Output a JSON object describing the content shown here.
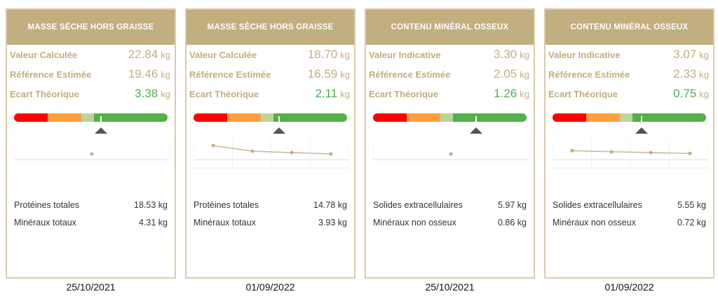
{
  "colors": {
    "header": "#c2ae7e",
    "green": "#4caf50",
    "red": "#ff0000",
    "orange": "#ffa040",
    "lightgreen": "#bcd49a",
    "gaugegreen": "#55b04a"
  },
  "cards": [
    {
      "title": "MASSE SÈCHE HORS GRAISSE",
      "rows": [
        {
          "label": "Valeur Calculée",
          "value": "22.84",
          "unit": "kg"
        },
        {
          "label": "Référence Estimée",
          "value": "19.46",
          "unit": "kg"
        },
        {
          "label": "Ecart Théorique",
          "value": "3.38",
          "unit": "kg"
        }
      ],
      "gauge_position": 0.56,
      "trend": [
        0.5
      ],
      "details": [
        {
          "label": "Protéines totales",
          "value": "18.53 kg"
        },
        {
          "label": "Minéraux totaux",
          "value": "4.31 kg"
        }
      ],
      "date": "25/10/2021"
    },
    {
      "title": "MASSE SÈCHE HORS GRAISSE",
      "rows": [
        {
          "label": "Valeur Calculée",
          "value": "18.70",
          "unit": "kg"
        },
        {
          "label": "Référence Estimée",
          "value": "16.59",
          "unit": "kg"
        },
        {
          "label": "Ecart Théorique",
          "value": "2.11",
          "unit": "kg"
        }
      ],
      "gauge_position": 0.55,
      "trend": [
        0.8,
        0.6,
        0.55,
        0.5
      ],
      "details": [
        {
          "label": "Protéines totales",
          "value": "14.78 kg"
        },
        {
          "label": "Minéraux totaux",
          "value": "3.93 kg"
        }
      ],
      "date": "01/09/2022"
    },
    {
      "title": "CONTENU MINÉRAL OSSEUX",
      "rows": [
        {
          "label": "Valeur Indicative",
          "value": "3.30",
          "unit": "kg"
        },
        {
          "label": "Référence Estimée",
          "value": "2.05",
          "unit": "kg"
        },
        {
          "label": "Ecart Théorique",
          "value": "1.26",
          "unit": "kg"
        }
      ],
      "gauge_position": 0.66,
      "trend": [
        0.5
      ],
      "details": [
        {
          "label": "Solides extracellulaires",
          "value": "5.97 kg"
        },
        {
          "label": "Minéraux non osseux",
          "value": "0.86 kg"
        }
      ],
      "date": "25/10/2021"
    },
    {
      "title": "CONTENU MINÉRAL OSSEUX",
      "rows": [
        {
          "label": "Valeur Indicative",
          "value": "3.07",
          "unit": "kg"
        },
        {
          "label": "Référence Estimée",
          "value": "2.33",
          "unit": "kg"
        },
        {
          "label": "Ecart Théorique",
          "value": "0.75",
          "unit": "kg"
        }
      ],
      "gauge_position": 0.57,
      "trend": [
        0.62,
        0.58,
        0.55,
        0.52
      ],
      "details": [
        {
          "label": "Solides extracellulaires",
          "value": "5.55 kg"
        },
        {
          "label": "Minéraux non osseux",
          "value": "0.72 kg"
        }
      ],
      "date": "01/09/2022"
    }
  ]
}
